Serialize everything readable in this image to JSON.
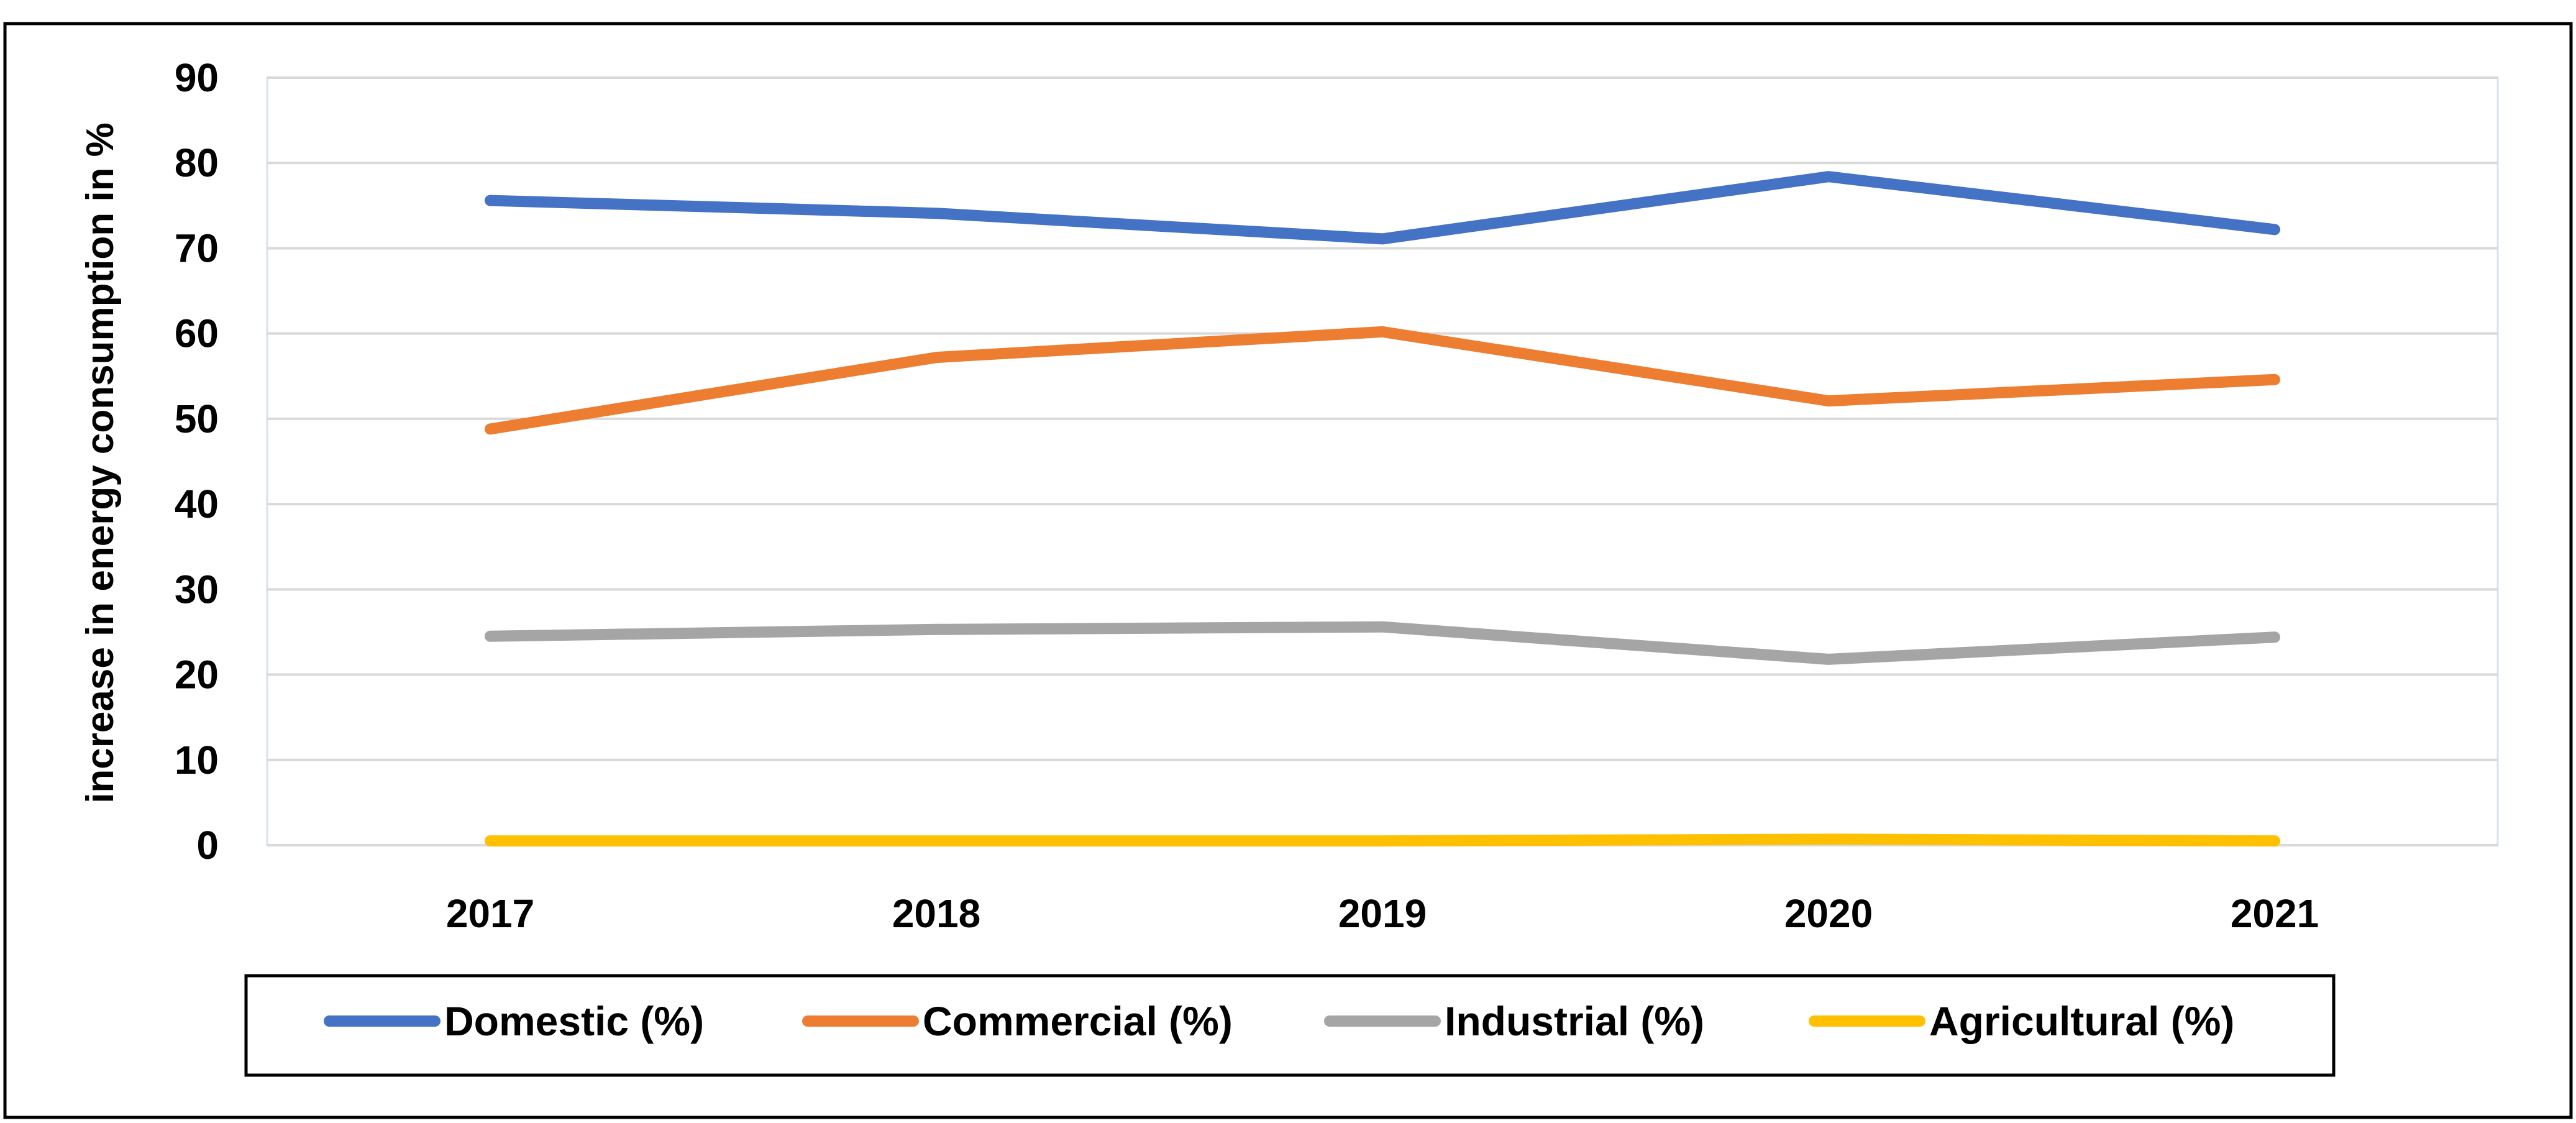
{
  "chart_data": {
    "type": "line",
    "title": "",
    "xlabel": "",
    "ylabel": "increase in energy consumption in %",
    "categories": [
      "2017",
      "2018",
      "2019",
      "2020",
      "2021"
    ],
    "ylim": [
      0,
      90
    ],
    "yticks": [
      0,
      10,
      20,
      30,
      40,
      50,
      60,
      70,
      80,
      90
    ],
    "grid": true,
    "legend_position": "bottom",
    "series": [
      {
        "name": "Domestic (%)",
        "color": "#4472C4",
        "values": [
          75.6,
          74.1,
          71.1,
          78.4,
          72.2
        ]
      },
      {
        "name": "Commercial (%)",
        "color": "#ED7D31",
        "values": [
          48.8,
          57.2,
          60.2,
          52.1,
          54.6
        ]
      },
      {
        "name": "Industrial (%)",
        "color": "#A5A5A5",
        "values": [
          24.5,
          25.3,
          25.6,
          21.8,
          24.4
        ]
      },
      {
        "name": "Agricultural (%)",
        "color": "#FFC000",
        "values": [
          0.5,
          0.5,
          0.5,
          0.7,
          0.5
        ]
      }
    ]
  }
}
